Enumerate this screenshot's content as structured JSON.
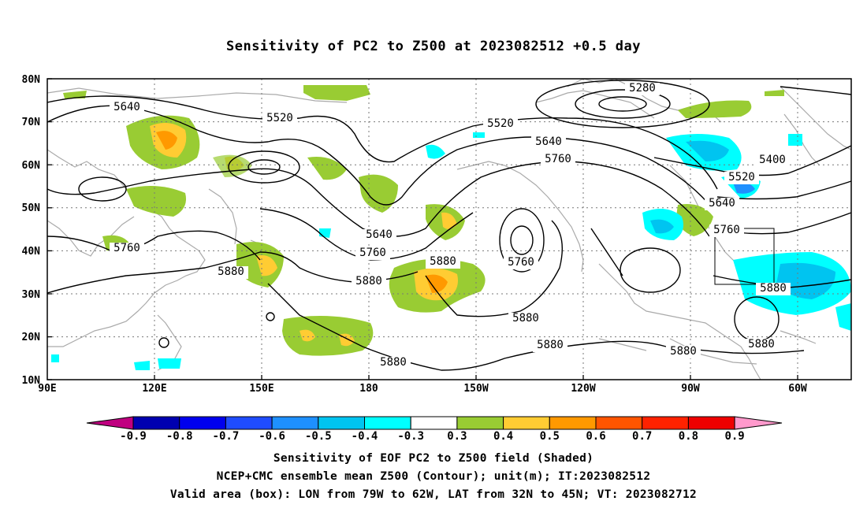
{
  "title": "Sensitivity of PC2 to Z500 at 2023082512 +0.5 day",
  "map": {
    "lat_labels": [
      "80N",
      "70N",
      "60N",
      "50N",
      "40N",
      "30N",
      "20N",
      "10N"
    ],
    "lon_labels": [
      "90E",
      "120E",
      "150E",
      "180",
      "150W",
      "120W",
      "90W",
      "60W"
    ],
    "contour_labels": [
      "5280",
      "5400",
      "5520",
      "5520",
      "5520",
      "5640",
      "5640",
      "5640",
      "5640",
      "5760",
      "5760",
      "5760",
      "5760",
      "5760",
      "5880",
      "5880",
      "5880",
      "5880",
      "5880",
      "5880",
      "5880",
      "5880",
      "5880"
    ],
    "valid_box": {
      "lon_min": -79,
      "lon_max": -62,
      "lat_min": 32,
      "lat_max": 45
    }
  },
  "colorbar": {
    "labels": [
      "-0.9",
      "-0.8",
      "-0.7",
      "-0.6",
      "-0.5",
      "-0.4",
      "-0.3",
      "0.3",
      "0.4",
      "0.5",
      "0.6",
      "0.7",
      "0.8",
      "0.9"
    ],
    "colors": [
      "#c00080",
      "#0000b0",
      "#0000ee",
      "#1f4cff",
      "#1e90ff",
      "#00c4f0",
      "#00ffff",
      "#ffffff",
      "#99cc33",
      "#ffcc33",
      "#ff9900",
      "#ff5500",
      "#ff2200",
      "#ee0000",
      "#ff99cc"
    ]
  },
  "captions": {
    "line1": "Sensitivity of EOF PC2 to Z500 field (Shaded)",
    "line2": "NCEP+CMC ensemble mean Z500 (Contour); unit(m); IT:2023082512",
    "line3": "Valid area (box): LON from 79W to 62W, LAT from 32N to 45N; VT: 2023082712"
  }
}
